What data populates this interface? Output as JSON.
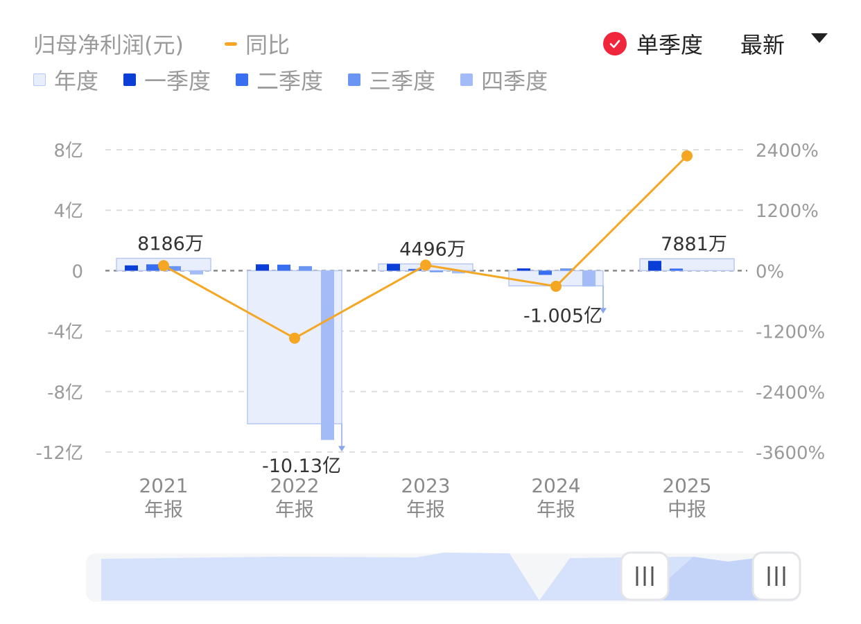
{
  "header": {
    "title": "归母净利润(元)",
    "yoy_label": "同比",
    "single_quarter_label": "单季度",
    "latest_label": "最新"
  },
  "colors": {
    "annual": "#e8eefb",
    "q1": "#0b3ed6",
    "q2": "#3a6ef0",
    "q3": "#6b95f2",
    "q4": "#a3bcf7",
    "yoy": "#f5a623",
    "check": "#f0263c"
  },
  "chart_data": {
    "type": "bar",
    "categories": [
      "2021",
      "2022",
      "2023",
      "2024",
      "2025"
    ],
    "category_sublabels": [
      "年报",
      "年报",
      "年报",
      "年报",
      "中报"
    ],
    "left_axis": {
      "unit": "亿元",
      "ylim": [
        -12,
        8
      ],
      "ticks": [
        8,
        4,
        0,
        -4,
        -8,
        -12
      ],
      "tick_labels": [
        "8亿",
        "4亿",
        "0",
        "-4亿",
        "-8亿",
        "-12亿"
      ]
    },
    "right_axis": {
      "unit": "%",
      "ylim": [
        -3600,
        2400
      ],
      "ticks": [
        2400,
        1200,
        0,
        -1200,
        -2400,
        -3600
      ],
      "tick_labels": [
        "2400%",
        "1200%",
        "0%",
        "-1200%",
        "-2400%",
        "-3600%"
      ]
    },
    "annual": {
      "name": "年度",
      "values": [
        0.8186,
        -10.13,
        0.4496,
        -1.005,
        0.7881
      ],
      "value_labels": [
        "8186万",
        "-10.13亿",
        "4496万",
        "-1.005亿",
        "7881万"
      ]
    },
    "series": [
      {
        "name": "一季度",
        "values": [
          0.35,
          0.42,
          0.45,
          0.15,
          0.65
        ]
      },
      {
        "name": "二季度",
        "values": [
          0.42,
          0.4,
          0.12,
          -0.28,
          0.14
        ]
      },
      {
        "name": "三季度",
        "values": [
          0.3,
          0.3,
          -0.1,
          0.15,
          null
        ]
      },
      {
        "name": "四季度",
        "values": [
          -0.25,
          -11.2,
          -0.18,
          -1.05,
          null
        ]
      }
    ],
    "yoy": {
      "name": "同比",
      "values": [
        100,
        -1340,
        110,
        -310,
        2280
      ]
    },
    "grid": true,
    "legend_position": "top-left"
  }
}
